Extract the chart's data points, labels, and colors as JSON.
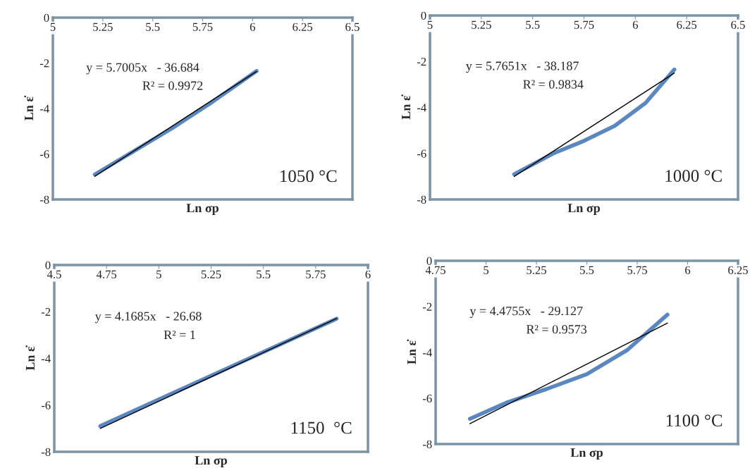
{
  "chart_data": [
    {
      "type": "line",
      "xlabel": "Ln σp",
      "ylabel": "Ln ε̇",
      "xlim": [
        5,
        6.5
      ],
      "ylim": [
        -8,
        0
      ],
      "xticks": [
        5,
        5.25,
        5.5,
        5.75,
        6,
        6.25,
        6.5
      ],
      "yticks": [
        0,
        -2,
        -4,
        -6,
        -8
      ],
      "series": [
        {
          "color": "#5b87c0",
          "x": [
            5.21,
            5.4,
            5.6,
            5.8,
            6.02
          ],
          "values": [
            -6.9,
            -5.9,
            -4.85,
            -3.7,
            -2.35
          ]
        },
        {
          "type": "line",
          "color": "#000000",
          "x": [
            5.21,
            6.02
          ],
          "values": [
            -6.98,
            -2.37
          ]
        }
      ],
      "annotations": [
        "y = 5.7005x   - 36.684",
        "R² = 0.9972",
        "1050 °C"
      ]
    },
    {
      "type": "line",
      "xlabel": "Ln σp",
      "ylabel": "Ln ε̇",
      "xlim": [
        5,
        6.5
      ],
      "ylim": [
        -8,
        0
      ],
      "xticks": [
        5,
        5.25,
        5.5,
        5.75,
        6,
        6.25,
        6.5
      ],
      "yticks": [
        0,
        -2,
        -4,
        -6,
        -8
      ],
      "series": [
        {
          "color": "#5b87c0",
          "x": [
            5.41,
            5.6,
            5.75,
            5.9,
            6.05,
            6.19
          ],
          "values": [
            -6.9,
            -6.0,
            -5.45,
            -4.8,
            -3.8,
            -2.35
          ]
        },
        {
          "type": "line",
          "color": "#000000",
          "x": [
            5.41,
            6.19
          ],
          "values": [
            -7.0,
            -2.5
          ]
        }
      ],
      "annotations": [
        "y = 5.7651x   - 38.187",
        "R² = 0.9834",
        "1000 °C"
      ]
    },
    {
      "type": "line",
      "xlabel": "Ln σp",
      "ylabel": "Ln ε̇",
      "xlim": [
        4.5,
        6
      ],
      "ylim": [
        -8,
        0
      ],
      "xticks": [
        4.5,
        4.75,
        5,
        5.25,
        5.5,
        5.75,
        6
      ],
      "yticks": [
        0,
        -2,
        -4,
        -6,
        -8
      ],
      "series": [
        {
          "color": "#5b87c0",
          "x": [
            4.72,
            5.85
          ],
          "values": [
            -6.9,
            -2.3
          ]
        },
        {
          "type": "line",
          "color": "#000000",
          "x": [
            4.72,
            5.85
          ],
          "values": [
            -7.0,
            -2.29
          ]
        }
      ],
      "annotations": [
        "y = 4.1685x   - 26.68",
        "R² = 1",
        "1150  °C"
      ]
    },
    {
      "type": "line",
      "xlabel": "Ln σp",
      "ylabel": "Ln ε̇",
      "xlim": [
        4.75,
        6.25
      ],
      "ylim": [
        -8,
        0
      ],
      "xticks": [
        4.75,
        5,
        5.25,
        5.5,
        5.75,
        6,
        6.25
      ],
      "yticks": [
        0,
        -2,
        -4,
        -6,
        -8
      ],
      "series": [
        {
          "color": "#5b87c0",
          "x": [
            4.92,
            5.1,
            5.3,
            5.5,
            5.7,
            5.9
          ],
          "values": [
            -6.9,
            -6.2,
            -5.6,
            -4.95,
            -3.9,
            -2.35
          ]
        },
        {
          "type": "line",
          "color": "#000000",
          "x": [
            4.92,
            5.9
          ],
          "values": [
            -7.11,
            -2.72
          ]
        }
      ],
      "annotations": [
        "y = 4.4755x   - 29.127",
        "R² = 0.9573",
        "1100 °C"
      ]
    }
  ]
}
